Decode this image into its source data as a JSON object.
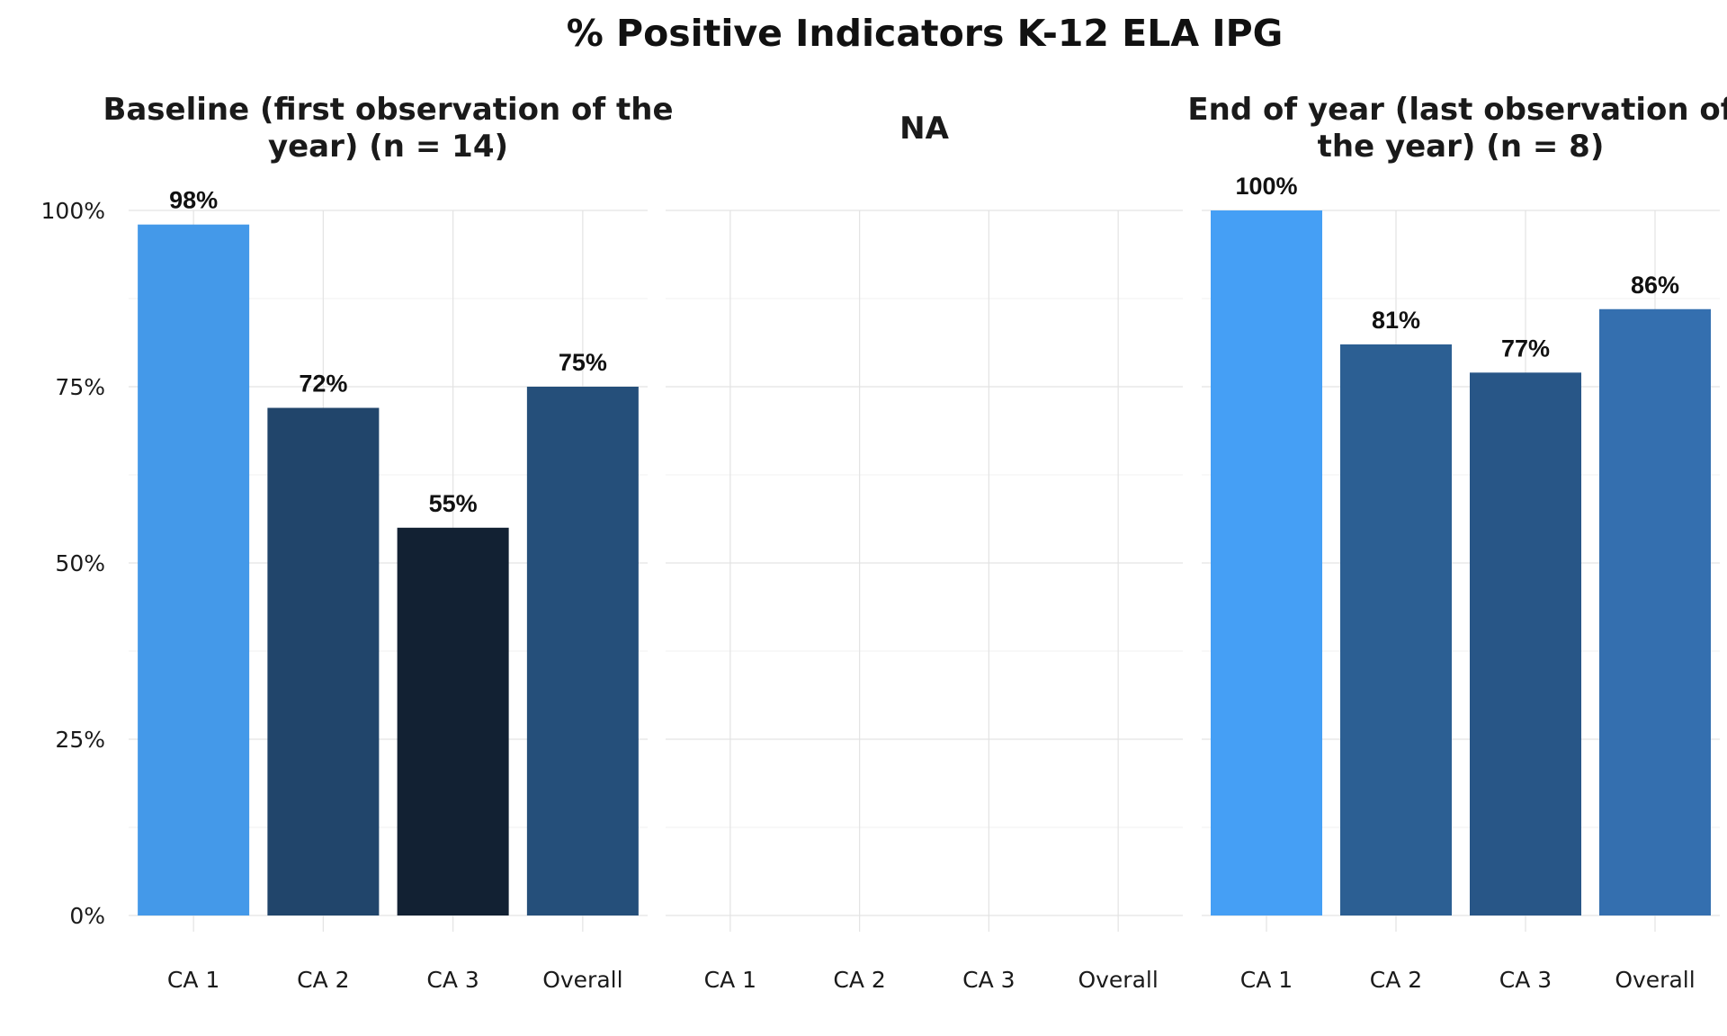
{
  "chart_data": {
    "type": "bar",
    "title": "% Positive Indicators K-12 ELA IPG",
    "categories": [
      "CA 1",
      "CA 2",
      "CA 3",
      "Overall"
    ],
    "ylim": [
      0,
      1
    ],
    "y_ticks": [
      {
        "value": 0,
        "label": "0%"
      },
      {
        "value": 0.25,
        "label": "25%"
      },
      {
        "value": 0.5,
        "label": "50%"
      },
      {
        "value": 0.75,
        "label": "75%"
      },
      {
        "value": 1,
        "label": "100%"
      }
    ],
    "grid": true,
    "legend": "none",
    "facets": [
      {
        "title_lines": [
          "Baseline (first observation of the",
          "year) (n = 14)"
        ],
        "values": [
          0.98,
          0.72,
          0.55,
          0.75
        ],
        "labels": [
          "98%",
          "72%",
          "55%",
          "75%"
        ],
        "colors": [
          "#4499e9",
          "#21456b",
          "#122133",
          "#254f7a"
        ]
      },
      {
        "title_lines": [
          "NA"
        ],
        "values": [],
        "labels": [],
        "colors": []
      },
      {
        "title_lines": [
          "End of year (last observation of",
          "the year) (n = 8)"
        ],
        "values": [
          1.0,
          0.81,
          0.77,
          0.86
        ],
        "labels": [
          "100%",
          "81%",
          "77%",
          "86%"
        ],
        "colors": [
          "#459ff5",
          "#2c5f93",
          "#285687",
          "#346faf"
        ]
      }
    ]
  }
}
